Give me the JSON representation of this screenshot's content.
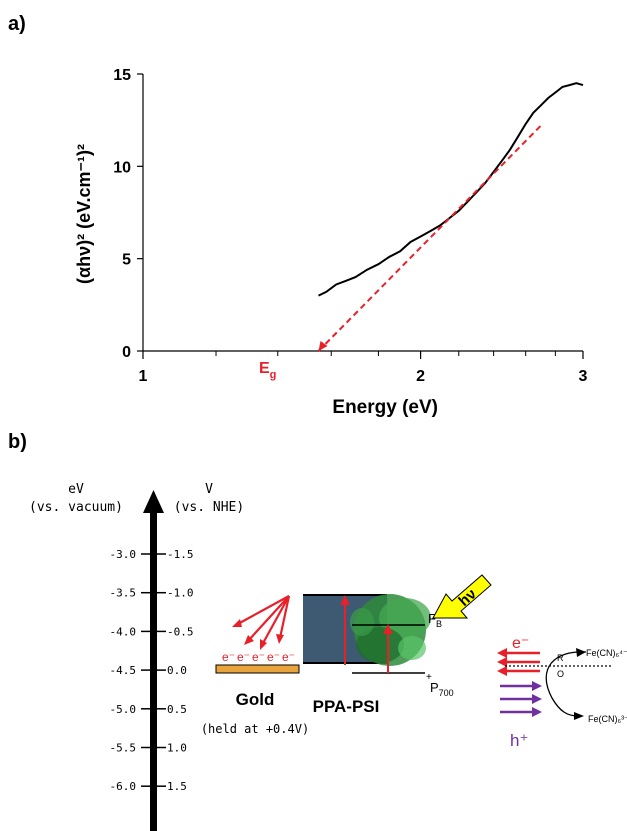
{
  "panel_a": {
    "label": "a)"
  },
  "panel_b": {
    "label": "b)"
  },
  "chart_data": {
    "type": "line",
    "xlabel": "Energy (eV)",
    "ylabel": "(αhν)² (eV.cm⁻¹)²",
    "x_scale": "log",
    "xlim": [
      1,
      3
    ],
    "ylim": [
      0,
      15
    ],
    "x_ticks": [
      1,
      2,
      3
    ],
    "y_ticks": [
      0,
      5,
      10,
      15
    ],
    "grid": false,
    "series": [
      {
        "style": "solid-black",
        "x": [
          1.55,
          1.58,
          1.62,
          1.66,
          1.7,
          1.75,
          1.8,
          1.85,
          1.9,
          1.95,
          2.0,
          2.05,
          2.1,
          2.15,
          2.2,
          2.25,
          2.3,
          2.35,
          2.4,
          2.45,
          2.5,
          2.55,
          2.6,
          2.65,
          2.7,
          2.75,
          2.8,
          2.85,
          2.9,
          2.95,
          3.0
        ],
        "y": [
          3.0,
          3.2,
          3.6,
          3.8,
          4.0,
          4.4,
          4.7,
          5.1,
          5.4,
          5.9,
          6.2,
          6.5,
          6.8,
          7.2,
          7.6,
          8.1,
          8.6,
          9.1,
          9.7,
          10.3,
          10.9,
          11.6,
          12.3,
          12.9,
          13.3,
          13.7,
          14.0,
          14.3,
          14.4,
          14.5,
          14.4
        ]
      },
      {
        "style": "dashed-red",
        "x": [
          1.55,
          2.7
        ],
        "y": [
          0,
          12.2
        ]
      }
    ],
    "annotations": [
      {
        "text": "E",
        "subscript": "g",
        "x": 1.55
      }
    ]
  },
  "diagram": {
    "left_axis_title": "eV",
    "left_axis_subtitle": "(vs. vacuum)",
    "right_axis_title": "V",
    "right_axis_subtitle": "(vs. NHE)",
    "ev_labels": [
      "-3.0",
      "-3.5",
      "-4.0",
      "-4.5",
      "-5.0",
      "-5.5",
      "-6.0"
    ],
    "nhe_labels": [
      "-1.5",
      "-1.0",
      "-0.5",
      "0.0",
      "0.5",
      "1.0",
      "1.5"
    ],
    "gold_label": "Gold",
    "gold_sublabel": "(held at +0.4V)",
    "electrons": [
      "e⁻",
      "e⁻",
      "e⁻",
      "e⁻",
      "e⁻"
    ],
    "ppa_label": "PPA-PSI",
    "fb_label": "F",
    "fb_sub": "B",
    "fb_sup": "–",
    "p700_label": "P",
    "p700_sub": "700",
    "p700_sup": "+",
    "hv_label": "hν",
    "electron_label": "e⁻",
    "hole_label": "h⁺",
    "fe_top": "Fe(CN)₆⁴⁻",
    "fe_bottom": "Fe(CN)₆³⁻",
    "r_label": "R",
    "o_label": "O",
    "colors": {
      "gold": "#e8a33a",
      "ppa_box": "#3d5a72",
      "arrow_red": "#e8202a",
      "hole_purple": "#7030a0",
      "hv_yellow": "#ffff00",
      "protein_green": "#2e8b3a"
    }
  }
}
